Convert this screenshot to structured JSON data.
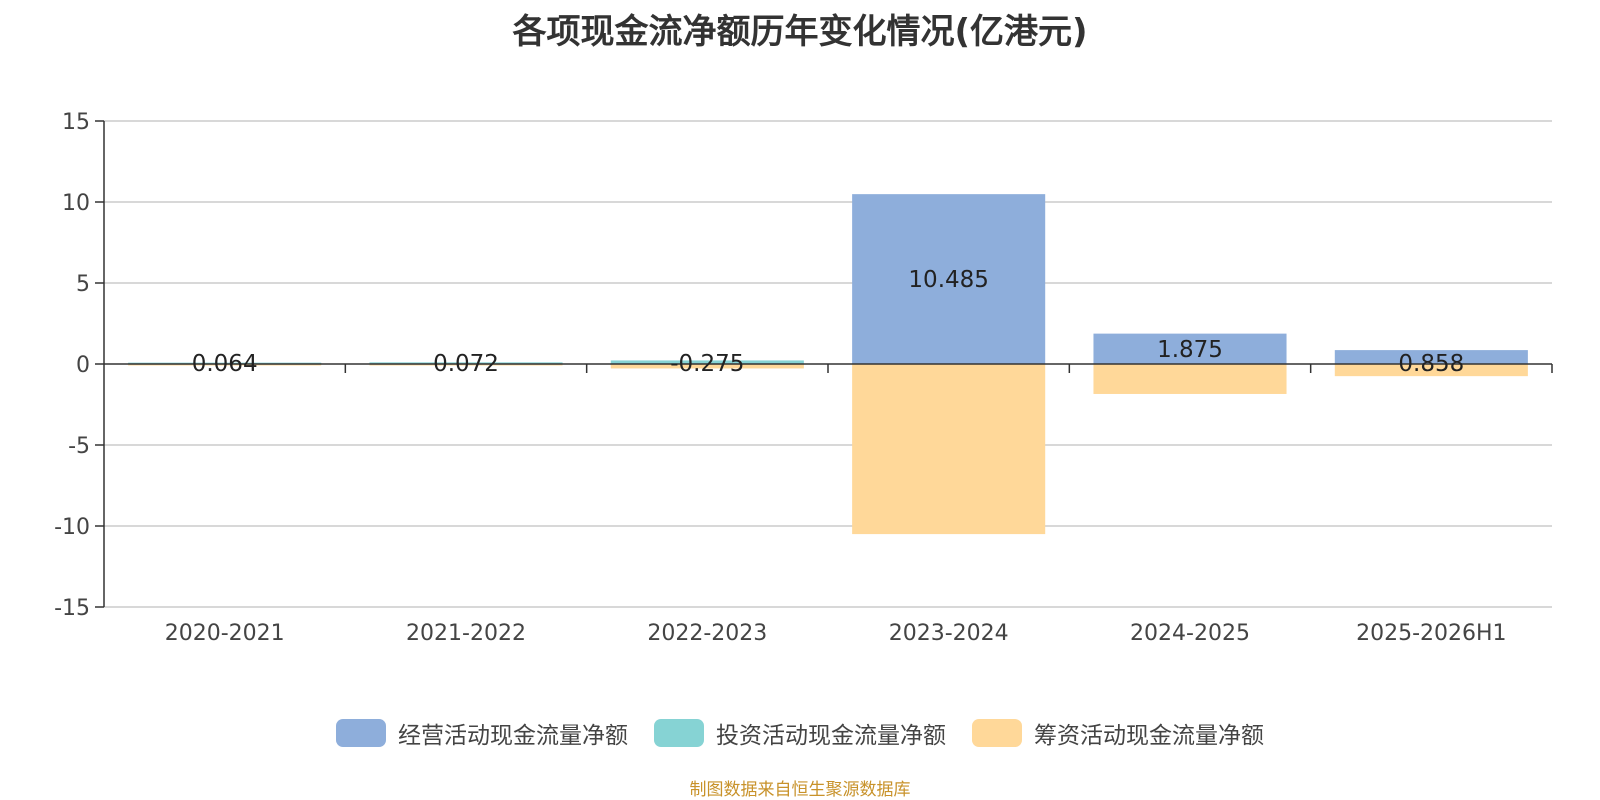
{
  "chart_data": {
    "type": "bar",
    "title": "各项现金流净额历年变化情况(亿港元)",
    "categories": [
      "2020-2021",
      "2021-2022",
      "2022-2023",
      "2023-2024",
      "2024-2025",
      "2025-2026H1"
    ],
    "series": [
      {
        "name": "经营活动现金流量净额",
        "color": "#8eaedb",
        "values": [
          0.064,
          0.072,
          0.02,
          10.485,
          1.875,
          0.858
        ]
      },
      {
        "name": "投资活动现金流量净额",
        "color": "#86d3d4",
        "values": [
          0.02,
          0.03,
          0.2,
          0,
          0,
          0
        ]
      },
      {
        "name": "筹资活动现金流量净额",
        "color": "#ffd899",
        "values": [
          -0.05,
          -0.03,
          -0.275,
          -10.5,
          -1.85,
          -0.75
        ]
      }
    ],
    "data_labels": [
      "0.064",
      "0.072",
      "-0.275",
      "10.485",
      "1.875",
      "0.858"
    ],
    "yticks": [
      15,
      10,
      5,
      0,
      -5,
      -10,
      -15
    ],
    "ylim": [
      -15,
      15
    ],
    "xlabel": "",
    "ylabel": "",
    "grid": true,
    "legend_position": "bottom"
  },
  "source_note": "制图数据来自恒生聚源数据库"
}
